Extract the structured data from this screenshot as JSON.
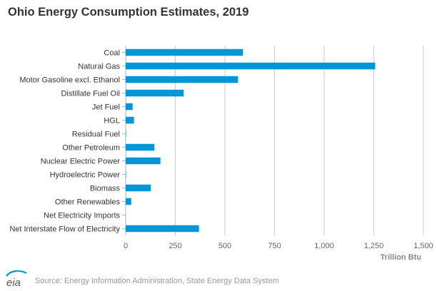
{
  "title": "Ohio Energy Consumption Estimates, 2019",
  "source": "Source: Energy Information Administration, State Energy Data System",
  "logo_text": "eia",
  "colors": {
    "bar": "#0096d7",
    "grid": "#cccccc",
    "axis": "#b3b3b3",
    "label": "#333333",
    "tick": "#666666",
    "unit": "#888888"
  },
  "chart_data": {
    "type": "bar",
    "orientation": "horizontal",
    "title": "Ohio Energy Consumption Estimates, 2019",
    "xlabel": "Trillion Btu",
    "ylabel": "",
    "xlim": [
      0,
      1500
    ],
    "xticks": [
      0,
      250,
      500,
      750,
      1000,
      1250,
      1500
    ],
    "xtick_labels": [
      "0",
      "250",
      "500",
      "750",
      "1,000",
      "1,250",
      "1,500"
    ],
    "categories": [
      "Coal",
      "Natural Gas",
      "Motor Gasoline excl. Ethanol",
      "Distillate Fuel Oil",
      "Jet Fuel",
      "HGL",
      "Residual Fuel",
      "Other Petroleum",
      "Nuclear Electric Power",
      "Hydroelectric Power",
      "Biomass",
      "Other Renewables",
      "Net Electricity Imports",
      "Net Interstate Flow of Electricity"
    ],
    "values": [
      591,
      1257,
      566,
      292,
      35,
      42,
      2,
      145,
      175,
      2,
      126,
      28,
      0,
      369
    ],
    "grid": true
  }
}
